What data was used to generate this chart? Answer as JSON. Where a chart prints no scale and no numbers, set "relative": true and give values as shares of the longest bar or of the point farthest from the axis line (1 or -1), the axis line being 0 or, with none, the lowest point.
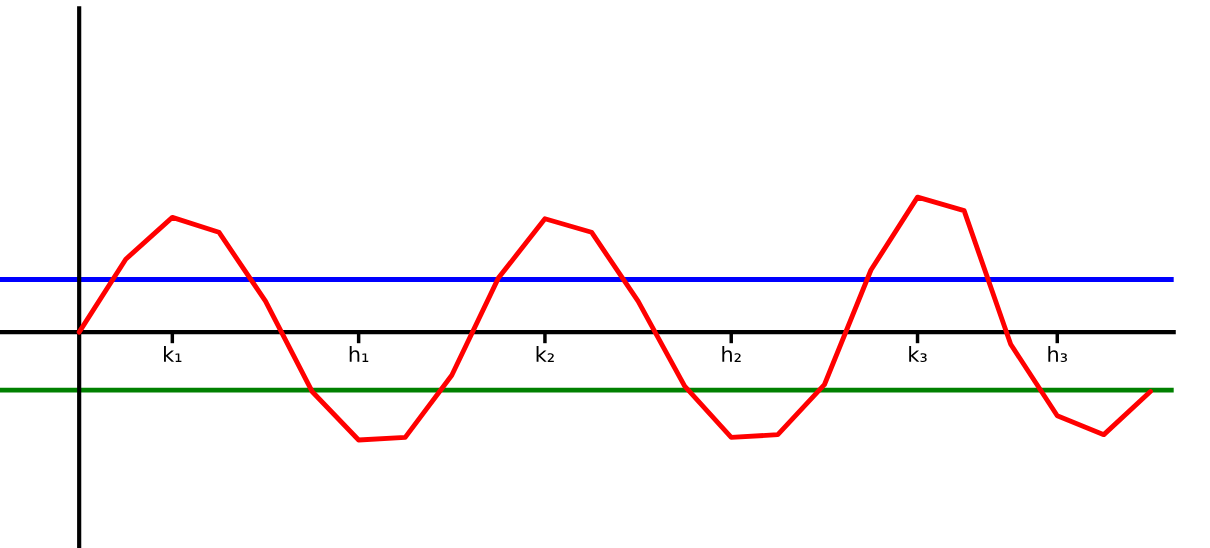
{
  "chart_data": {
    "type": "line",
    "relative": true,
    "categories": [
      null,
      null,
      "k₁",
      null,
      null,
      null,
      "h₁",
      null,
      null,
      null,
      "k₂",
      null,
      null,
      null,
      "h₂",
      null,
      null,
      null,
      "k₃",
      null,
      null,
      "h₃",
      null,
      null
    ],
    "series": [
      {
        "color": "#ff0000",
        "values": [
          0,
          0.54,
          0.85,
          0.74,
          0.23,
          -0.44,
          -0.8,
          -0.78,
          -0.32,
          0.4,
          0.84,
          0.74,
          0.23,
          -0.4,
          -0.78,
          -0.76,
          -0.39,
          0.46,
          1.0,
          0.9,
          -0.09,
          -0.62,
          -0.76,
          -0.44
        ]
      }
    ],
    "ref_lines": [
      {
        "axis": "y",
        "value": 0.39,
        "color": "#0000ff"
      },
      {
        "axis": "y",
        "value": -0.43,
        "color": "#008000"
      }
    ],
    "marker": "none",
    "line_style": "solid",
    "legend": false
  }
}
